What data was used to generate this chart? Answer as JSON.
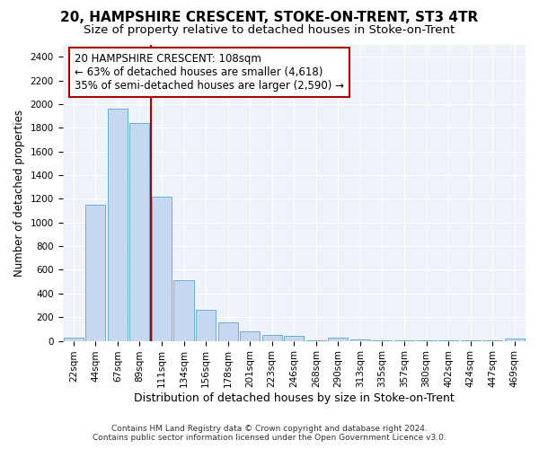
{
  "title": "20, HAMPSHIRE CRESCENT, STOKE-ON-TRENT, ST3 4TR",
  "subtitle": "Size of property relative to detached houses in Stoke-on-Trent",
  "xlabel": "Distribution of detached houses by size in Stoke-on-Trent",
  "ylabel": "Number of detached properties",
  "footer1": "Contains HM Land Registry data © Crown copyright and database right 2024.",
  "footer2": "Contains public sector information licensed under the Open Government Licence v3.0.",
  "annotation_title": "20 HAMPSHIRE CRESCENT: 108sqm",
  "annotation_line1": "← 63% of detached houses are smaller (4,618)",
  "annotation_line2": "35% of semi-detached houses are larger (2,590) →",
  "bar_color": "#c5d8f0",
  "bar_edge_color": "#6baed6",
  "marker_color": "#aa0000",
  "categories": [
    "22sqm",
    "44sqm",
    "67sqm",
    "89sqm",
    "111sqm",
    "134sqm",
    "156sqm",
    "178sqm",
    "201sqm",
    "223sqm",
    "246sqm",
    "268sqm",
    "290sqm",
    "313sqm",
    "335sqm",
    "357sqm",
    "380sqm",
    "402sqm",
    "424sqm",
    "447sqm",
    "469sqm"
  ],
  "values": [
    28,
    1150,
    1960,
    1840,
    1220,
    515,
    265,
    155,
    80,
    50,
    45,
    5,
    25,
    15,
    5,
    5,
    5,
    5,
    5,
    5,
    20
  ],
  "marker_bin_idx": 4,
  "ylim": [
    0,
    2500
  ],
  "yticks": [
    0,
    200,
    400,
    600,
    800,
    1000,
    1200,
    1400,
    1600,
    1800,
    2000,
    2200,
    2400
  ],
  "background_color": "#eef2f9",
  "grid_color": "#ffffff",
  "title_fontsize": 11,
  "subtitle_fontsize": 9.5,
  "ylabel_fontsize": 8.5,
  "xlabel_fontsize": 9,
  "tick_fontsize": 7.5,
  "annotation_fontsize": 8.5,
  "footer_fontsize": 6.5
}
